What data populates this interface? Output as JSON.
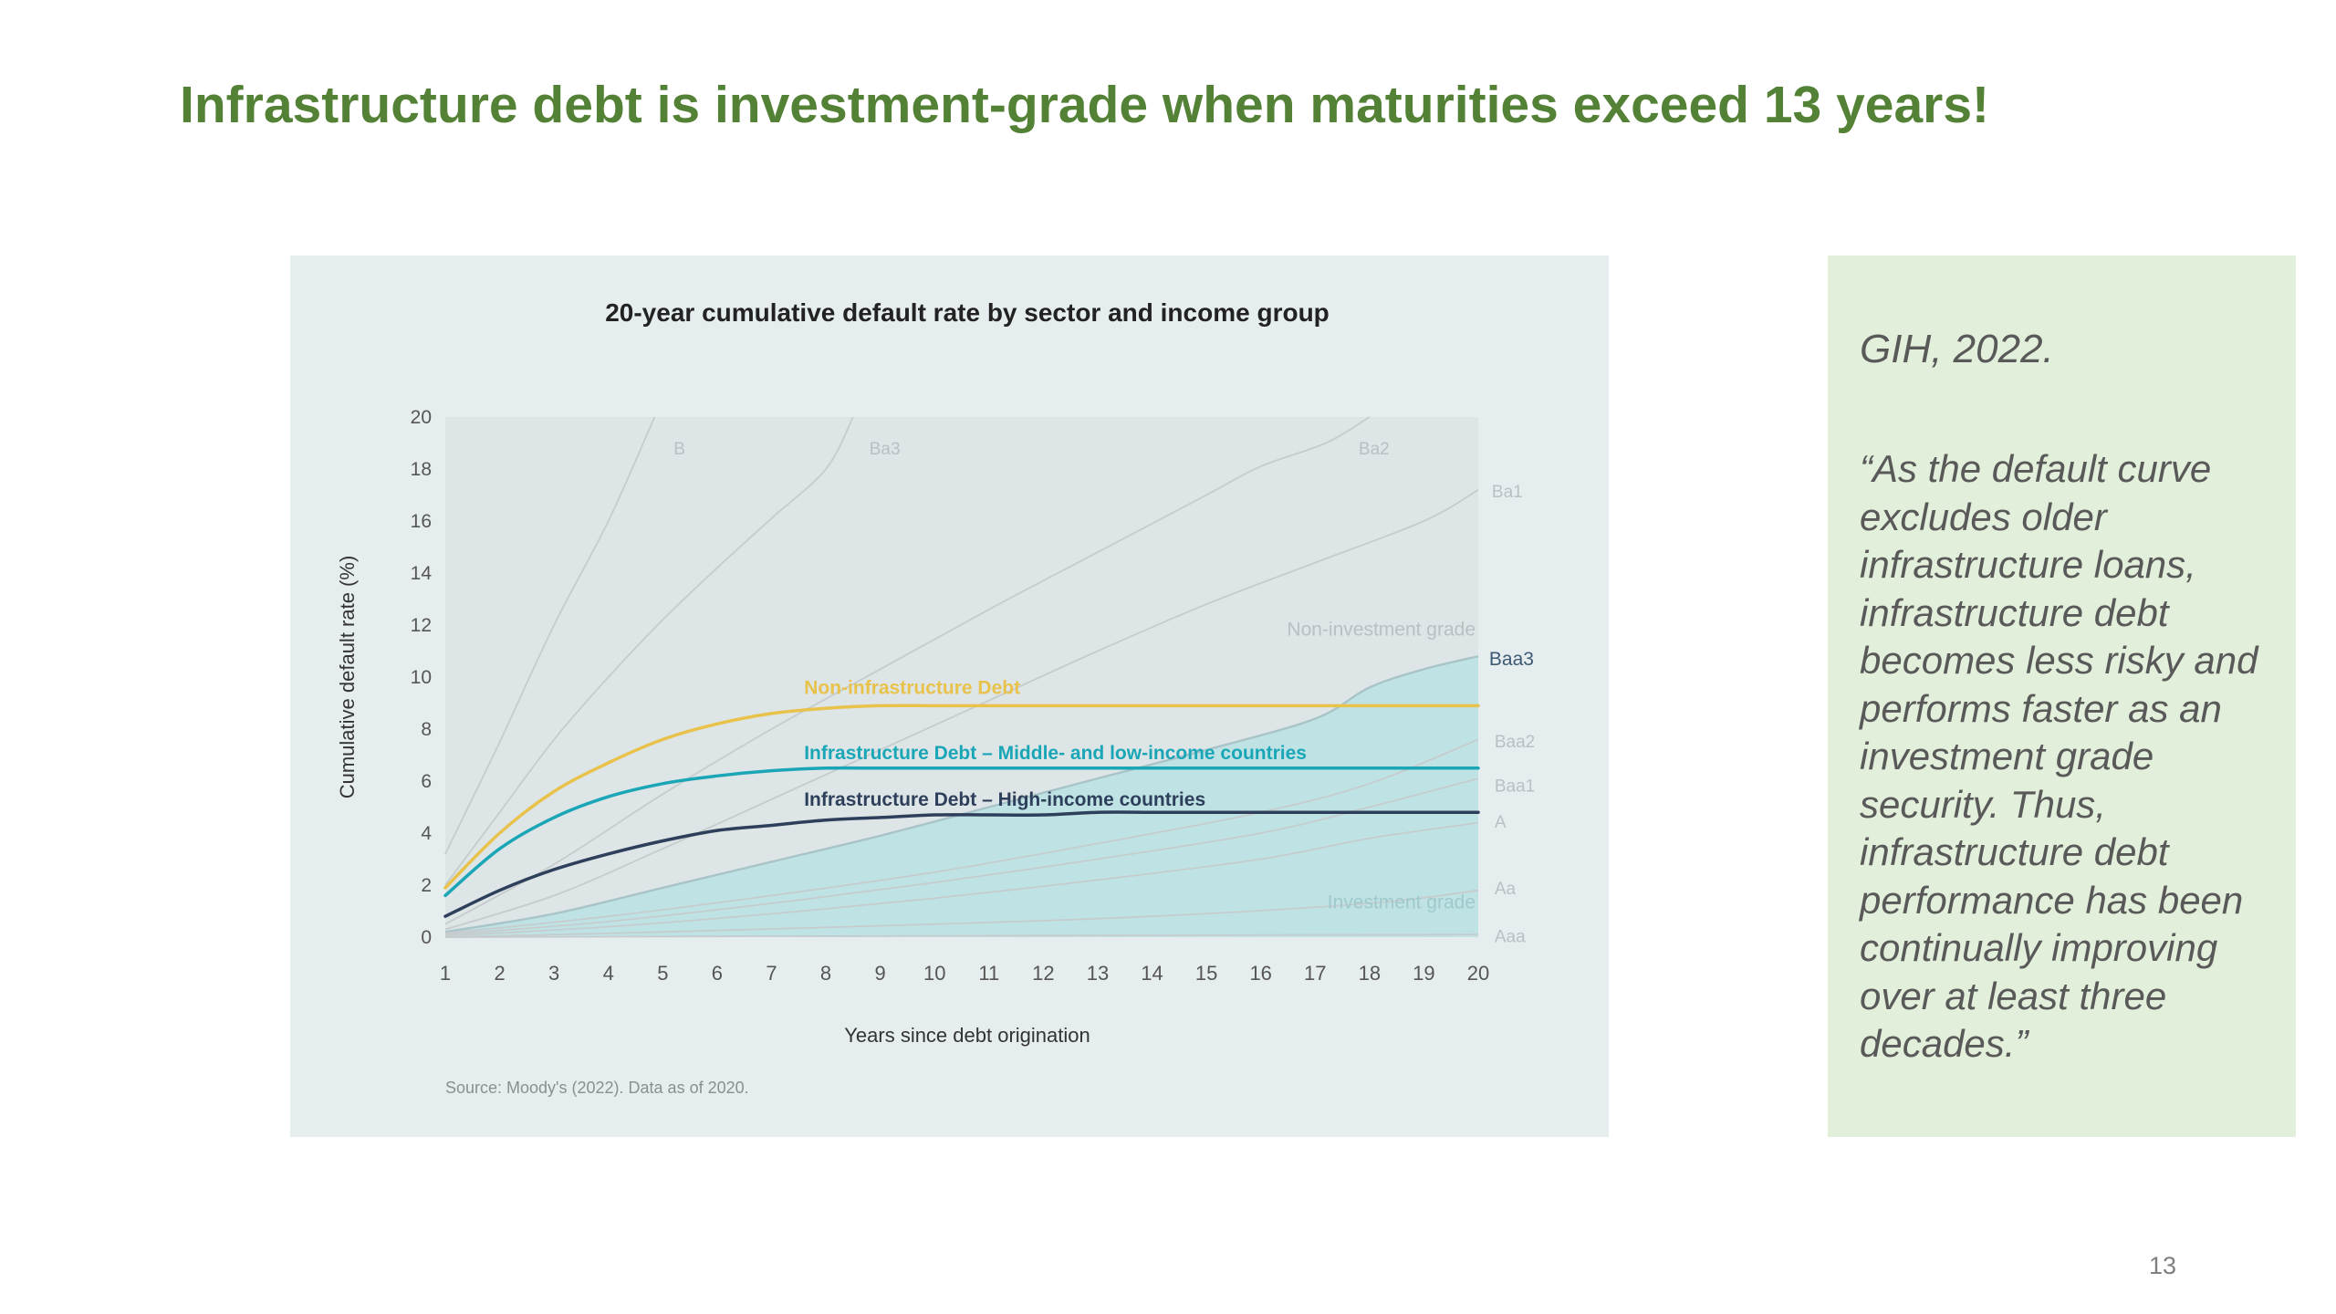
{
  "slide": {
    "title": "Infrastructure debt is investment-grade when maturities exceed 13 years!",
    "page_number": "13"
  },
  "quote_box": {
    "citation": "GIH, 2022.",
    "quote": "“As the default curve excludes older infrastructure loans, infrastructure debt becomes less risky and performs faster as an investment grade security. Thus, infrastructure debt performance has been continually improving over at least three decades.”"
  },
  "chart_data": {
    "type": "line",
    "title": "20-year cumulative default rate by sector and income group",
    "xlabel": "Years since debt origination",
    "ylabel": "Cumulative default rate (%)",
    "source": "Source: Moody's (2022). Data as of 2020.",
    "x": [
      1,
      2,
      3,
      4,
      5,
      6,
      7,
      8,
      9,
      10,
      11,
      12,
      13,
      14,
      15,
      16,
      17,
      18,
      19,
      20
    ],
    "xlim": [
      1,
      20
    ],
    "ylim": [
      0,
      20
    ],
    "x_ticks": [
      "1",
      "2",
      "3",
      "4",
      "5",
      "6",
      "7",
      "8",
      "9",
      "10",
      "11",
      "12",
      "13",
      "14",
      "15",
      "16",
      "17",
      "18",
      "19",
      "20"
    ],
    "y_ticks": [
      "0",
      "2",
      "4",
      "6",
      "8",
      "10",
      "12",
      "14",
      "16",
      "18",
      "20"
    ],
    "region_labels": {
      "non_investment": "Non-investment grade",
      "investment": "Investment grade"
    },
    "colors": {
      "panel_bg": "#e6edee",
      "plot_bg": "#dde5e6",
      "investment_fill": "#bfe3e4",
      "rating_line": "#c6ccce",
      "rating_label": "#b8c0c3",
      "baa3_label": "#3d5a74",
      "tick_label": "#555555",
      "title": "#222222"
    },
    "series": [
      {
        "name": "Non-infrastructure Debt",
        "color": "#e8c24a",
        "width": 3.5,
        "values": [
          1.9,
          4.0,
          5.6,
          6.7,
          7.6,
          8.2,
          8.6,
          8.8,
          8.9,
          8.9,
          8.9,
          8.9,
          8.9,
          8.9,
          8.9,
          8.9,
          8.9,
          8.9,
          8.9,
          8.9
        ]
      },
      {
        "name": "Infrastructure Debt – Middle- and low-income countries",
        "color": "#1aa6b7",
        "width": 3.5,
        "values": [
          1.6,
          3.4,
          4.6,
          5.4,
          5.9,
          6.2,
          6.4,
          6.5,
          6.5,
          6.5,
          6.5,
          6.5,
          6.5,
          6.5,
          6.5,
          6.5,
          6.5,
          6.5,
          6.5,
          6.5
        ]
      },
      {
        "name": "Infrastructure Debt – High-income countries",
        "color": "#2e3f5c",
        "width": 3.5,
        "values": [
          0.8,
          1.8,
          2.6,
          3.2,
          3.7,
          4.1,
          4.3,
          4.5,
          4.6,
          4.7,
          4.7,
          4.7,
          4.8,
          4.8,
          4.8,
          4.8,
          4.8,
          4.8,
          4.8,
          4.8
        ]
      }
    ],
    "series_labels": [
      {
        "text": "Non-infrastructure Debt",
        "x": 7.6,
        "y": 9.35
      },
      {
        "text": "Infrastructure Debt – Middle- and low-income countries",
        "x": 7.6,
        "y": 6.85
      },
      {
        "text": "Infrastructure Debt – High-income countries",
        "x": 7.6,
        "y": 5.05
      }
    ],
    "rating_curves": [
      {
        "name": "B",
        "label_x": 5.2,
        "label_y": 18.8,
        "points": [
          [
            1,
            3.2
          ],
          [
            2,
            7.5
          ],
          [
            3,
            12.0
          ],
          [
            4,
            16.0
          ],
          [
            4.85,
            20
          ]
        ]
      },
      {
        "name": "Ba3",
        "label_x": 8.8,
        "label_y": 18.8,
        "points": [
          [
            1,
            2.0
          ],
          [
            2,
            4.8
          ],
          [
            3,
            7.6
          ],
          [
            4,
            10.0
          ],
          [
            5,
            12.2
          ],
          [
            6,
            14.2
          ],
          [
            7,
            16.1
          ],
          [
            8,
            18.0
          ],
          [
            8.5,
            20
          ]
        ]
      },
      {
        "name": "Ba2",
        "label_x": 17.8,
        "label_y": 18.8,
        "points": [
          [
            1,
            0.5
          ],
          [
            3,
            2.8
          ],
          [
            5,
            5.5
          ],
          [
            7,
            8.0
          ],
          [
            9,
            10.3
          ],
          [
            11,
            12.6
          ],
          [
            13,
            14.8
          ],
          [
            15,
            17.0
          ],
          [
            16,
            18.1
          ],
          [
            17.2,
            19.0
          ],
          [
            18.0,
            20
          ]
        ]
      },
      {
        "name": "Ba1",
        "label_x": 20.25,
        "label_y": 17.15,
        "points": [
          [
            1,
            0.3
          ],
          [
            3,
            1.6
          ],
          [
            5,
            3.4
          ],
          [
            7,
            5.3
          ],
          [
            9,
            7.2
          ],
          [
            11,
            9.1
          ],
          [
            13,
            11.0
          ],
          [
            15,
            12.8
          ],
          [
            17,
            14.4
          ],
          [
            19,
            16.0
          ],
          [
            20,
            17.2
          ]
        ]
      },
      {
        "name": "Baa3",
        "label_x": 20.2,
        "label_y": 10.7,
        "highlight": true,
        "points": [
          [
            1,
            0.2
          ],
          [
            3,
            0.9
          ],
          [
            5,
            1.9
          ],
          [
            7,
            2.9
          ],
          [
            9,
            3.9
          ],
          [
            11,
            5.0
          ],
          [
            13,
            6.1
          ],
          [
            15,
            7.2
          ],
          [
            17,
            8.4
          ],
          [
            18,
            9.6
          ],
          [
            19,
            10.3
          ],
          [
            20,
            10.8
          ]
        ]
      },
      {
        "name": "Baa2",
        "label_x": 20.3,
        "label_y": 7.55,
        "points": [
          [
            1,
            0.15
          ],
          [
            4,
            0.8
          ],
          [
            7,
            1.6
          ],
          [
            10,
            2.5
          ],
          [
            13,
            3.6
          ],
          [
            16,
            4.8
          ],
          [
            18,
            5.9
          ],
          [
            20,
            7.6
          ]
        ]
      },
      {
        "name": "Baa1",
        "label_x": 20.3,
        "label_y": 5.85,
        "points": [
          [
            1,
            0.1
          ],
          [
            4,
            0.6
          ],
          [
            7,
            1.3
          ],
          [
            10,
            2.1
          ],
          [
            13,
            3.0
          ],
          [
            16,
            4.0
          ],
          [
            18,
            5.0
          ],
          [
            20,
            6.1
          ]
        ]
      },
      {
        "name": "A",
        "label_x": 20.3,
        "label_y": 4.45,
        "points": [
          [
            1,
            0.05
          ],
          [
            4,
            0.4
          ],
          [
            7,
            0.9
          ],
          [
            10,
            1.5
          ],
          [
            13,
            2.2
          ],
          [
            16,
            3.0
          ],
          [
            18,
            3.8
          ],
          [
            20,
            4.4
          ]
        ]
      },
      {
        "name": "Aa",
        "label_x": 20.3,
        "label_y": 1.9,
        "points": [
          [
            1,
            0.0
          ],
          [
            5,
            0.2
          ],
          [
            10,
            0.5
          ],
          [
            14,
            0.8
          ],
          [
            18,
            1.3
          ],
          [
            20,
            1.8
          ]
        ]
      },
      {
        "name": "Aaa",
        "label_x": 20.3,
        "label_y": 0.05,
        "points": [
          [
            1,
            0.0
          ],
          [
            10,
            0.05
          ],
          [
            20,
            0.1
          ]
        ]
      }
    ],
    "investment_region_top": "Baa3",
    "grid": false,
    "legend": "inline labels"
  }
}
